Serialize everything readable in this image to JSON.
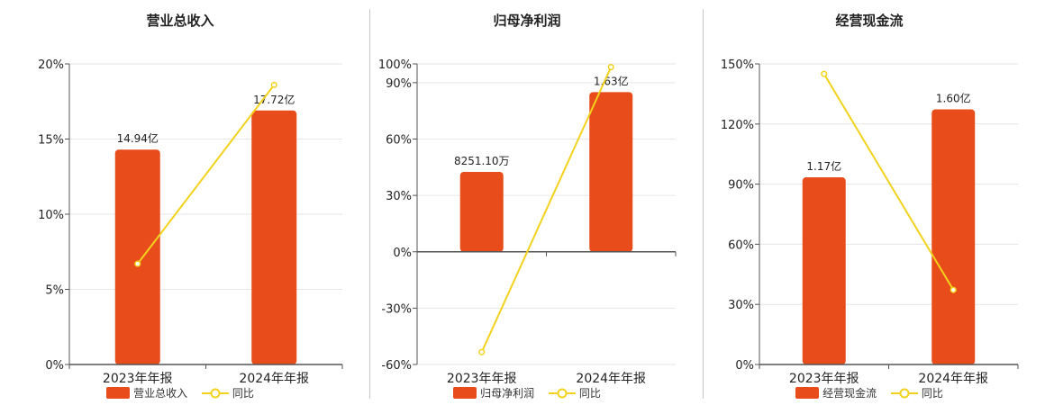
{
  "colors": {
    "bar": "#e84c1b",
    "line": "#f2d21c",
    "axis": "#555555",
    "grid": "#e6e6e6",
    "text": "#222222"
  },
  "chart_data": [
    {
      "type": "bar",
      "title": "营业总收入",
      "categories": [
        "2023年年报",
        "2024年年报"
      ],
      "bar_labels": [
        "14.94亿",
        "17.72亿"
      ],
      "ylim": [
        0,
        20
      ],
      "y_ticks": [
        0,
        5,
        10,
        15,
        20
      ],
      "y_tick_labels": [
        "0%",
        "5%",
        "10%",
        "15%",
        "20%"
      ],
      "series": [
        {
          "name": "营业总收入",
          "kind": "bar",
          "values": [
            14.3,
            16.9
          ]
        },
        {
          "name": "同比",
          "kind": "line",
          "values": [
            6.7,
            18.6
          ]
        }
      ],
      "legend": "bottom"
    },
    {
      "type": "bar",
      "title": "归母净利润",
      "categories": [
        "2023年年报",
        "2024年年报"
      ],
      "bar_labels": [
        "8251.10万",
        "1.63亿"
      ],
      "ylim": [
        -60,
        100
      ],
      "y_ticks": [
        -60,
        -30,
        0,
        30,
        60,
        90,
        100
      ],
      "y_tick_labels": [
        "-60%",
        "-30%",
        "0%",
        "30%",
        "60%",
        "90%",
        "100%"
      ],
      "series": [
        {
          "name": "归母净利润",
          "kind": "bar",
          "values": [
            42.5,
            85
          ]
        },
        {
          "name": "同比",
          "kind": "line",
          "values": [
            -53.4,
            98.3
          ]
        }
      ],
      "legend": "bottom"
    },
    {
      "type": "bar",
      "title": "经营现金流",
      "categories": [
        "2023年年报",
        "2024年年报"
      ],
      "bar_labels": [
        "1.17亿",
        "1.60亿"
      ],
      "ylim": [
        0,
        150
      ],
      "y_ticks": [
        0,
        30,
        60,
        90,
        120,
        150
      ],
      "y_tick_labels": [
        "0%",
        "30%",
        "60%",
        "90%",
        "120%",
        "150%"
      ],
      "series": [
        {
          "name": "经营现金流",
          "kind": "bar",
          "values": [
            93.4,
            127.3
          ]
        },
        {
          "name": "同比",
          "kind": "line",
          "values": [
            145,
            37.2
          ]
        }
      ],
      "legend": "bottom"
    }
  ]
}
